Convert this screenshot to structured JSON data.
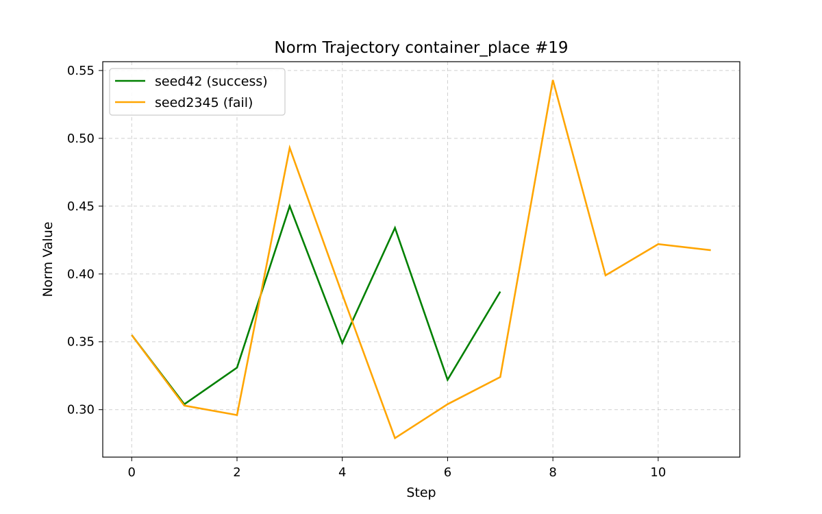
{
  "chart_data": {
    "type": "line",
    "title": "Norm Trajectory container_place #19",
    "xlabel": "Step",
    "ylabel": "Norm Value",
    "xlim": [
      -0.55,
      11.55
    ],
    "ylim": [
      0.265,
      0.5565
    ],
    "xticks": [
      0,
      2,
      4,
      6,
      8,
      10
    ],
    "xtick_labels": [
      "0",
      "2",
      "4",
      "6",
      "8",
      "10"
    ],
    "yticks": [
      0.3,
      0.35,
      0.4,
      0.45,
      0.5,
      0.55
    ],
    "ytick_labels": [
      "0.30",
      "0.35",
      "0.40",
      "0.45",
      "0.50",
      "0.55"
    ],
    "grid": true,
    "legend_position": "top-left",
    "series": [
      {
        "name": "seed42 (success)",
        "color": "#008000",
        "x": [
          0,
          1,
          2,
          3,
          4,
          5,
          6,
          7
        ],
        "values": [
          0.355,
          0.304,
          0.331,
          0.45,
          0.349,
          0.434,
          0.322,
          0.387
        ]
      },
      {
        "name": "seed2345 (fail)",
        "color": "#FFA500",
        "x": [
          0,
          1,
          2,
          3,
          4,
          5,
          6,
          7,
          8,
          9,
          10,
          11
        ],
        "values": [
          0.355,
          0.303,
          0.296,
          0.493,
          0.385,
          0.279,
          0.304,
          0.324,
          0.543,
          0.399,
          0.422,
          0.4175
        ]
      }
    ]
  }
}
